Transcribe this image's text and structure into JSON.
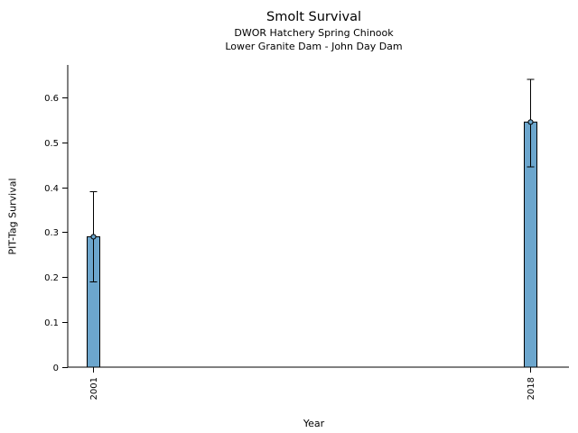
{
  "chart_data": {
    "type": "bar",
    "title": "Smolt Survival",
    "subtitle1": "DWOR Hatchery Spring Chinook",
    "subtitle2": "Lower Granite Dam - John Day Dam",
    "xlabel": "Year",
    "ylabel": "PIT-Tag Survival",
    "categories": [
      "2001",
      "2018"
    ],
    "x": [
      2001,
      2018
    ],
    "values": [
      0.29,
      0.545
    ],
    "error_low": [
      0.19,
      0.445
    ],
    "error_high": [
      0.39,
      0.64
    ],
    "ytick_labels": [
      "0",
      "0.1",
      "0.2",
      "0.3",
      "0.4",
      "0.5",
      "0.6"
    ],
    "yticks": [
      0,
      0.1,
      0.2,
      0.3,
      0.4,
      0.5,
      0.6
    ],
    "ylim": [
      0,
      0.672
    ],
    "xlim": [
      2000,
      2019.5
    ],
    "bar_color": "#6CA6CD",
    "bar_edge_color": "#000000",
    "error_color": "#000000",
    "axis_color": "#000000",
    "grid": false,
    "legend": false
  }
}
